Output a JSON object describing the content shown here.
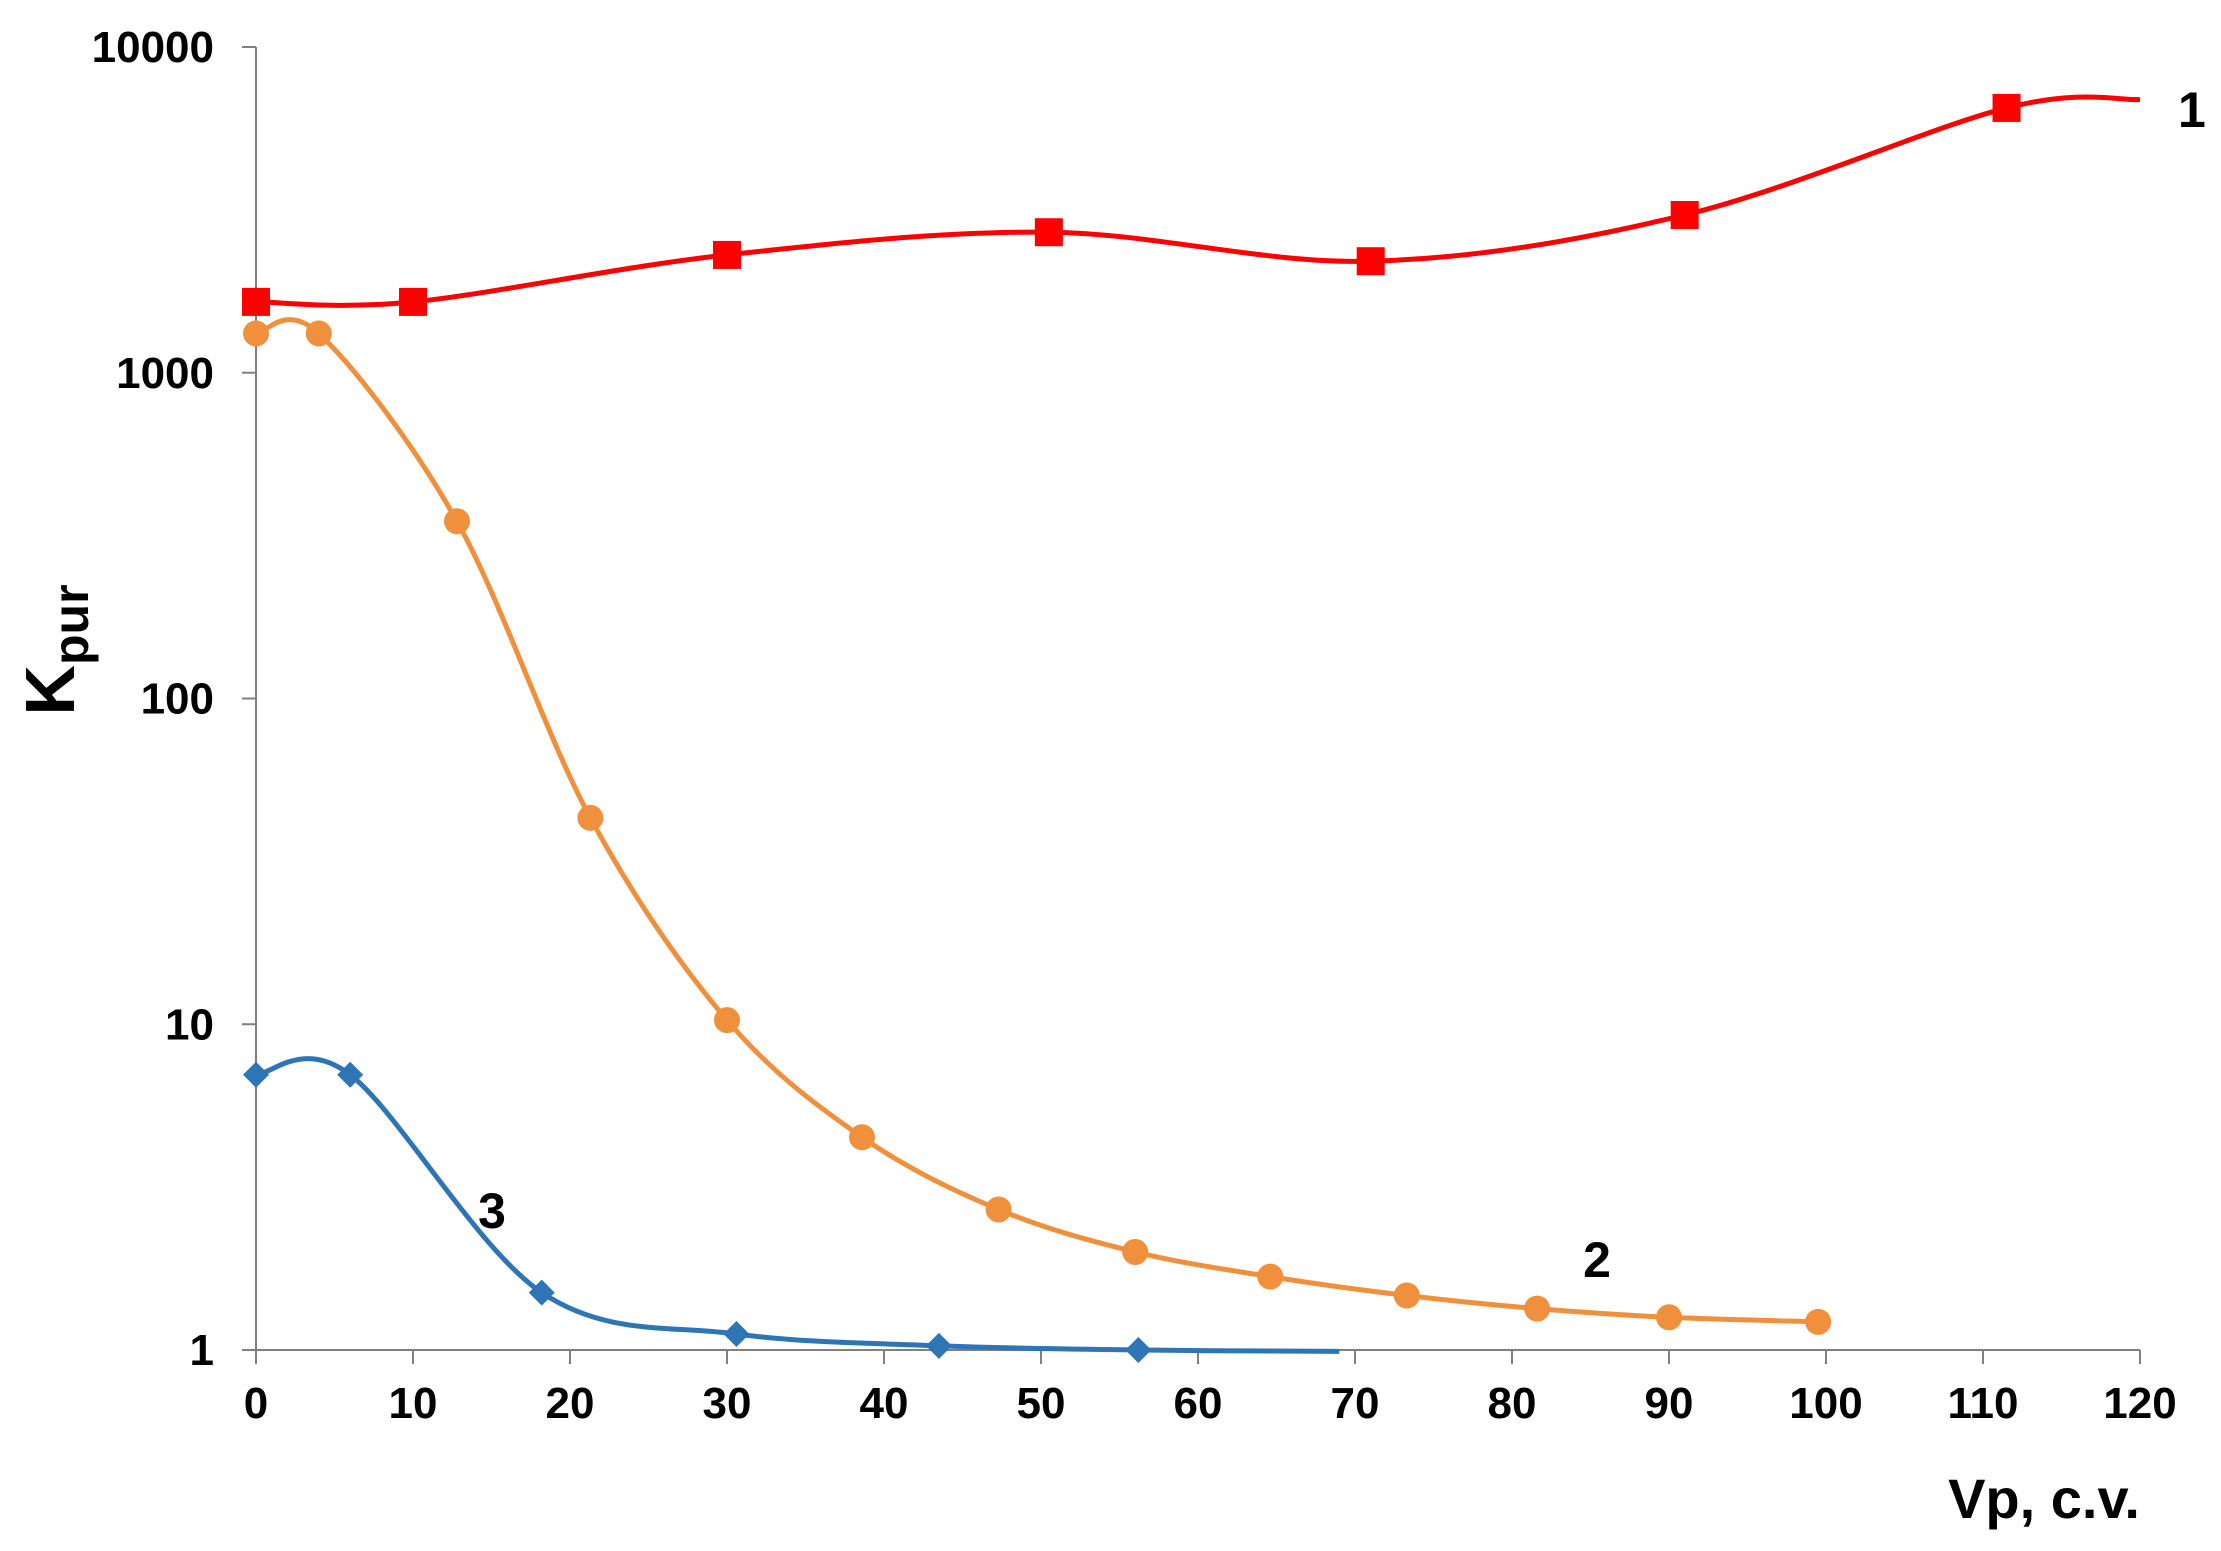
{
  "chart_data": {
    "type": "line",
    "xlabel": "Vp, c.v.",
    "ylabel": {
      "main": "K",
      "subscript": "pur"
    },
    "xlim": [
      0,
      120
    ],
    "ylim": [
      1,
      10000
    ],
    "y_scale": "log",
    "x_ticks": [
      "0",
      "10",
      "20",
      "30",
      "40",
      "50",
      "60",
      "70",
      "80",
      "90",
      "100",
      "110",
      "120"
    ],
    "y_ticks": [
      "1",
      "10",
      "100",
      "1000",
      "10000"
    ],
    "grid": false,
    "legend": "none",
    "series": [
      {
        "name": "1",
        "color": "#ff0000",
        "marker": "square",
        "x": [
          0,
          10,
          30,
          50.5,
          71,
          91,
          111.5
        ],
        "y": [
          1650,
          1650,
          2300,
          2700,
          2200,
          3050,
          6500
        ],
        "curve_end": [
          120,
          6900
        ]
      },
      {
        "name": "2",
        "color": "#f0903c",
        "marker": "circle",
        "x": [
          0,
          4,
          12.8,
          21.3,
          30,
          38.6,
          47.3,
          56,
          64.6,
          73.3,
          81.6,
          90,
          99.5
        ],
        "y": [
          1320,
          1320,
          350,
          43,
          10.3,
          4.5,
          2.7,
          2.0,
          1.68,
          1.47,
          1.34,
          1.26,
          1.22
        ]
      },
      {
        "name": "3",
        "color": "#2e75b6",
        "marker": "diamond",
        "x": [
          0,
          6,
          18.2,
          30.6,
          43.5,
          56.2
        ],
        "y": [
          7.0,
          7.0,
          1.5,
          1.12,
          1.03,
          1.0
        ],
        "curve_end": [
          69,
          0.99
        ]
      }
    ]
  }
}
